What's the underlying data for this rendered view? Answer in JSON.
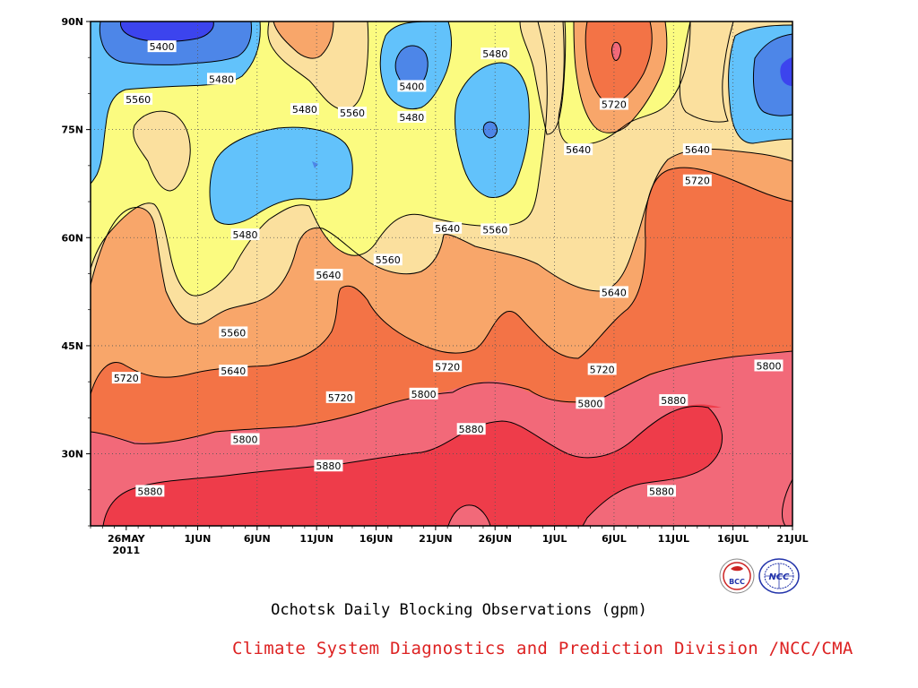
{
  "chart_data": {
    "type": "contour",
    "title": "Ochotsk Daily Blocking Observations (gpm)",
    "credit": "Climate System Diagnostics and Prediction Division /NCC/CMA",
    "x_tick_labels": [
      "26MAY",
      "1JUN",
      "6JUN",
      "11JUN",
      "16JUN",
      "21JUN",
      "26JUN",
      "1JUL",
      "6JUL",
      "11JUL",
      "16JUL",
      "21JUL"
    ],
    "x_year_label": "2011",
    "x_range": [
      "2011-05-23",
      "2011-07-21"
    ],
    "y_tick_labels": [
      "90N",
      "75N",
      "60N",
      "45N",
      "30N"
    ],
    "y_range_deg": [
      20,
      90
    ],
    "contour_levels": [
      5400,
      5480,
      5560,
      5640,
      5720,
      5800,
      5880
    ],
    "fill_colors": {
      "5320": "#3c44ee",
      "5400": "#4d86e8",
      "5480": "#62c2fb",
      "5560": "#fbfb80",
      "5640": "#fbe09e",
      "5720": "#f8a66a",
      "5800": "#f37346",
      "5880": "#f26979",
      "5960": "#ee3c4a"
    },
    "contour_labels": [
      {
        "text": "5400",
        "date": "2011-05-29",
        "lat": 86.5
      },
      {
        "text": "5480",
        "date": "2011-06-03",
        "lat": 82.0
      },
      {
        "text": "5560",
        "date": "2011-05-27",
        "lat": 79.2
      },
      {
        "text": "5480",
        "date": "2011-06-10",
        "lat": 77.8
      },
      {
        "text": "5560",
        "date": "2011-06-14",
        "lat": 77.3
      },
      {
        "text": "5400",
        "date": "2011-06-19",
        "lat": 81.0
      },
      {
        "text": "5480",
        "date": "2011-06-19",
        "lat": 76.7
      },
      {
        "text": "5480",
        "date": "2011-06-26",
        "lat": 85.5
      },
      {
        "text": "5720",
        "date": "2011-07-06",
        "lat": 78.5
      },
      {
        "text": "5640",
        "date": "2011-07-03",
        "lat": 72.2
      },
      {
        "text": "5640",
        "date": "2011-07-13",
        "lat": 72.2
      },
      {
        "text": "5720",
        "date": "2011-07-13",
        "lat": 67.9
      },
      {
        "text": "5480",
        "date": "2011-06-05",
        "lat": 60.4
      },
      {
        "text": "5640",
        "date": "2011-06-22",
        "lat": 61.3
      },
      {
        "text": "5560",
        "date": "2011-06-26",
        "lat": 61.1
      },
      {
        "text": "5560",
        "date": "2011-06-17",
        "lat": 56.9
      },
      {
        "text": "5640",
        "date": "2011-06-12",
        "lat": 54.8
      },
      {
        "text": "5640",
        "date": "2011-07-06",
        "lat": 52.4
      },
      {
        "text": "5560",
        "date": "2011-06-04",
        "lat": 46.8
      },
      {
        "text": "5720",
        "date": "2011-05-26",
        "lat": 40.5
      },
      {
        "text": "5640",
        "date": "2011-06-04",
        "lat": 41.5
      },
      {
        "text": "5720",
        "date": "2011-06-22",
        "lat": 42.1
      },
      {
        "text": "5720",
        "date": "2011-07-05",
        "lat": 41.7
      },
      {
        "text": "5800",
        "date": "2011-07-19",
        "lat": 42.2
      },
      {
        "text": "5720",
        "date": "2011-06-13",
        "lat": 37.8
      },
      {
        "text": "5800",
        "date": "2011-06-20",
        "lat": 38.3
      },
      {
        "text": "5800",
        "date": "2011-07-04",
        "lat": 37.0
      },
      {
        "text": "5880",
        "date": "2011-07-11",
        "lat": 37.4
      },
      {
        "text": "5800",
        "date": "2011-06-05",
        "lat": 32.0
      },
      {
        "text": "5880",
        "date": "2011-06-24",
        "lat": 33.4
      },
      {
        "text": "5880",
        "date": "2011-06-12",
        "lat": 28.3
      },
      {
        "text": "5880",
        "date": "2011-05-28",
        "lat": 24.8
      },
      {
        "text": "5880",
        "date": "2011-07-10",
        "lat": 24.8
      }
    ]
  },
  "logos": {
    "left": {
      "name": "bcc-logo",
      "text": "BCC"
    },
    "right": {
      "name": "ncc-logo",
      "text": "NCC"
    }
  }
}
